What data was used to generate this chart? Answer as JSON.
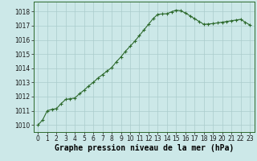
{
  "x": [
    0,
    1,
    2,
    3,
    4,
    5,
    6,
    7,
    8,
    9,
    10,
    11,
    12,
    13,
    14,
    15,
    16,
    17,
    18,
    19,
    20,
    21,
    22,
    23
  ],
  "y": [
    1010.0,
    1011.0,
    1011.15,
    1011.8,
    1011.9,
    1012.45,
    1013.0,
    1013.55,
    1014.05,
    1014.8,
    1015.55,
    1016.3,
    1017.1,
    1017.8,
    1017.85,
    1018.1,
    1017.9,
    1017.5,
    1017.1,
    1017.15,
    1017.25,
    1017.35,
    1017.45,
    1017.05
  ],
  "interp_x": [
    0,
    0.5,
    1,
    1.5,
    2,
    2.5,
    3,
    3.5,
    4,
    4.5,
    5,
    5.5,
    6,
    6.5,
    7,
    7.5,
    8,
    8.5,
    9,
    9.5,
    10,
    10.5,
    11,
    11.5,
    12,
    12.5,
    13,
    13.5,
    14,
    14.5,
    15,
    15.5,
    16,
    16.5,
    17,
    17.5,
    18,
    18.5,
    19,
    19.5,
    20,
    20.5,
    21,
    21.5,
    22,
    22.5,
    23
  ],
  "interp_y": [
    1010.0,
    1010.35,
    1011.0,
    1011.1,
    1011.15,
    1011.5,
    1011.8,
    1011.85,
    1011.9,
    1012.2,
    1012.45,
    1012.75,
    1013.0,
    1013.3,
    1013.55,
    1013.8,
    1014.05,
    1014.45,
    1014.8,
    1015.2,
    1015.55,
    1015.9,
    1016.3,
    1016.7,
    1017.1,
    1017.5,
    1017.8,
    1017.83,
    1017.85,
    1017.98,
    1018.1,
    1018.05,
    1017.9,
    1017.7,
    1017.5,
    1017.3,
    1017.1,
    1017.12,
    1017.15,
    1017.2,
    1017.25,
    1017.3,
    1017.35,
    1017.4,
    1017.45,
    1017.25,
    1017.05
  ],
  "line_color": "#2d6a2d",
  "marker": "+",
  "marker_size": 3,
  "marker_lw": 0.8,
  "line_width": 0.8,
  "bg_color": "#cce8e8",
  "grid_color": "#aacccc",
  "xlabel": "Graphe pression niveau de la mer (hPa)",
  "xlabel_fontsize": 7,
  "ylim": [
    1009.5,
    1018.7
  ],
  "xlim": [
    -0.5,
    23.5
  ],
  "yticks": [
    1010,
    1011,
    1012,
    1013,
    1014,
    1015,
    1016,
    1017,
    1018
  ],
  "xticks": [
    0,
    1,
    2,
    3,
    4,
    5,
    6,
    7,
    8,
    9,
    10,
    11,
    12,
    13,
    14,
    15,
    16,
    17,
    18,
    19,
    20,
    21,
    22,
    23
  ],
  "tick_fontsize": 5.5,
  "spine_color": "#2d6a2d"
}
